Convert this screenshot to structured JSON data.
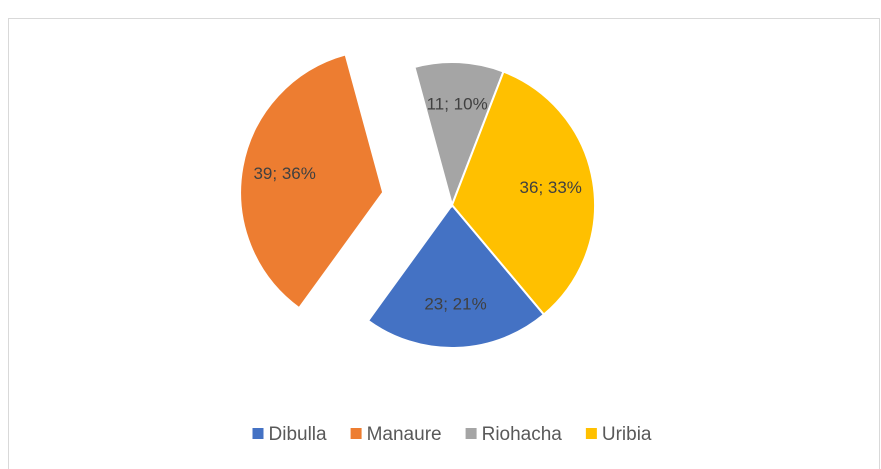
{
  "chart_data": {
    "type": "pie",
    "categories": [
      "Dibulla",
      "Manaure",
      "Riohacha",
      "Uribia"
    ],
    "values": [
      23,
      39,
      11,
      36
    ],
    "value_labels": [
      "23; 21%",
      "39; 36%",
      "11; 10%",
      "36; 33%"
    ],
    "colors": [
      "#4472c4",
      "#ed7d31",
      "#a5a5a5",
      "#ffc000"
    ],
    "exploded": "Manaure",
    "legend": "bottom"
  }
}
